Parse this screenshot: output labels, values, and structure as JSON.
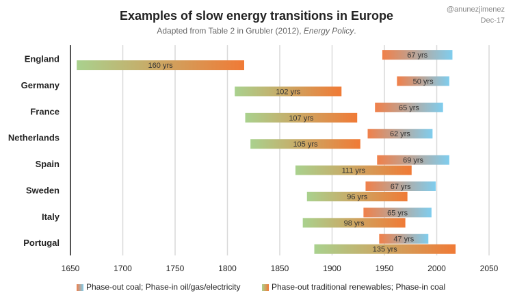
{
  "chart_data": {
    "type": "floating-bar",
    "title": "Examples of slow energy transitions in Europe",
    "subtitle": [
      "Adapted from Table 2 in Grubler (2012), ",
      "Energy Policy",
      "."
    ],
    "author": "@anunezjimenez",
    "date": "Dec-17",
    "categories": [
      "England",
      "Germany",
      "France",
      "Netherlands",
      "Spain",
      "Sweden",
      "Italy",
      "Portugal"
    ],
    "series": [
      {
        "name": "Phase-out coal; Phase-in oil/gas/electricity",
        "color": [
          "#f0804a",
          "#7fcdee"
        ],
        "starts": [
          1948,
          1962,
          1941,
          1934,
          1943,
          1932,
          1930,
          1945
        ],
        "values": [
          67,
          50,
          65,
          62,
          69,
          67,
          65,
          47
        ],
        "value_labels": [
          "67 yrs",
          "50 yrs",
          "65 yrs",
          "62 yrs",
          "69 yrs",
          "67 yrs",
          "65 yrs",
          "47 yrs"
        ]
      },
      {
        "name": "Phase-out traditional renewables; Phase-in coal",
        "color": [
          "#a9d18e",
          "#f07a36"
        ],
        "starts": [
          1656,
          1807,
          1817,
          1822,
          1865,
          1876,
          1872,
          1883
        ],
        "values": [
          160,
          102,
          107,
          105,
          111,
          96,
          98,
          135
        ],
        "value_labels": [
          "160 yrs",
          "102 yrs",
          "107 yrs",
          "105 yrs",
          "111 yrs",
          "96 yrs",
          "98 yrs",
          "135 yrs"
        ]
      }
    ],
    "xlim": [
      1650,
      2050
    ],
    "xticks": [
      1650,
      1700,
      1750,
      1800,
      1850,
      1900,
      1950,
      2000,
      2050
    ],
    "grid": true
  }
}
